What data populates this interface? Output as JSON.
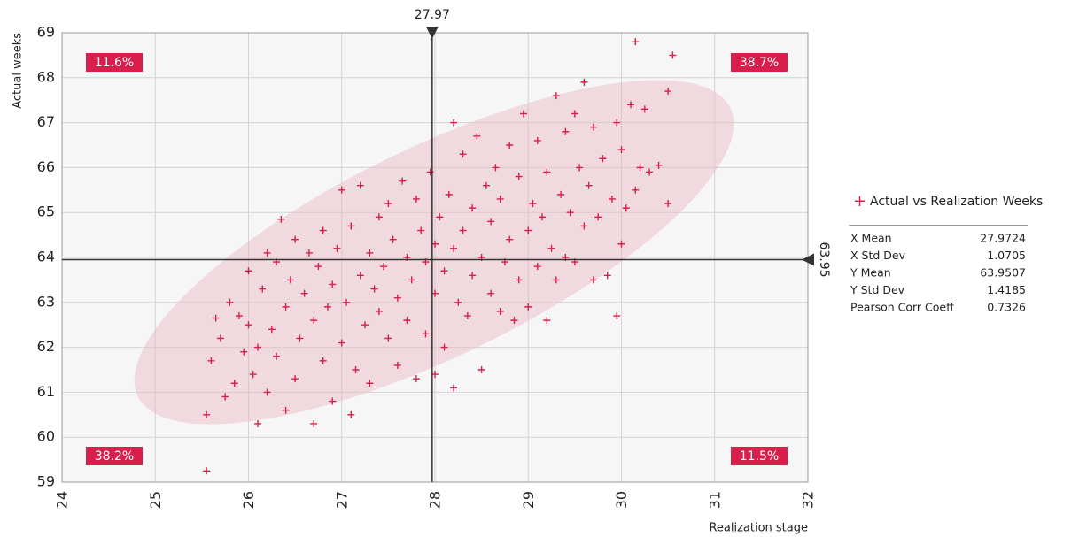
{
  "chart_data": {
    "type": "scatter",
    "x_label": "Realization stage",
    "y_label": "Actual weeks",
    "xlim": [
      24,
      32
    ],
    "ylim": [
      59,
      69
    ],
    "xticks": [
      24,
      25,
      26,
      27,
      28,
      29,
      30,
      31,
      32
    ],
    "yticks": [
      59,
      60,
      61,
      62,
      63,
      64,
      65,
      66,
      67,
      68,
      69
    ],
    "grid": true,
    "x_mean_marker": 27.97,
    "y_mean_marker": 63.95,
    "quadrant_labels": [
      "11.6%",
      "38.7%",
      "38.2%",
      "11.5%"
    ],
    "series": [
      {
        "name": "Actual vs Realization Weeks",
        "color": "#d81e4a",
        "x": [
          25.55,
          25.55,
          25.6,
          25.65,
          25.7,
          25.75,
          25.8,
          25.85,
          25.9,
          25.95,
          26.0,
          26.0,
          26.05,
          26.1,
          26.1,
          26.15,
          26.2,
          26.2,
          26.25,
          26.3,
          26.3,
          26.35,
          26.4,
          26.4,
          26.45,
          26.5,
          26.5,
          26.55,
          26.6,
          26.65,
          26.7,
          26.7,
          26.75,
          26.8,
          26.8,
          26.85,
          26.9,
          26.9,
          26.95,
          27.0,
          27.0,
          27.05,
          27.1,
          27.1,
          27.15,
          27.2,
          27.2,
          27.25,
          27.3,
          27.3,
          27.35,
          27.4,
          27.4,
          27.45,
          27.5,
          27.5,
          27.55,
          27.6,
          27.6,
          27.65,
          27.7,
          27.7,
          27.75,
          27.8,
          27.8,
          27.85,
          27.9,
          27.9,
          27.95,
          28.0,
          28.0,
          28.0,
          28.05,
          28.1,
          28.1,
          28.15,
          28.2,
          28.2,
          28.2,
          28.25,
          28.3,
          28.3,
          28.35,
          28.4,
          28.4,
          28.45,
          28.5,
          28.5,
          28.55,
          28.6,
          28.6,
          28.65,
          28.7,
          28.7,
          28.75,
          28.8,
          28.8,
          28.85,
          28.9,
          28.9,
          28.95,
          29.0,
          29.0,
          29.05,
          29.1,
          29.1,
          29.15,
          29.2,
          29.2,
          29.25,
          29.3,
          29.3,
          29.35,
          29.4,
          29.4,
          29.45,
          29.5,
          29.5,
          29.55,
          29.6,
          29.6,
          29.65,
          29.7,
          29.7,
          29.75,
          29.8,
          29.85,
          29.9,
          29.95,
          29.95,
          30.0,
          30.0,
          30.05,
          30.1,
          30.15,
          30.15,
          30.2,
          30.25,
          30.3,
          30.4,
          30.5,
          30.5,
          30.55
        ],
        "values": [
          59.25,
          60.5,
          61.7,
          62.65,
          62.2,
          60.9,
          63.0,
          61.2,
          62.7,
          61.9,
          63.7,
          62.5,
          61.4,
          60.3,
          62.0,
          63.3,
          64.1,
          61.0,
          62.4,
          63.9,
          61.8,
          64.85,
          62.9,
          60.6,
          63.5,
          64.4,
          61.3,
          62.2,
          63.2,
          64.1,
          60.3,
          62.6,
          63.8,
          64.6,
          61.7,
          62.9,
          63.4,
          60.8,
          64.2,
          65.5,
          62.1,
          63.0,
          60.5,
          64.7,
          61.5,
          63.6,
          65.6,
          62.5,
          64.1,
          61.2,
          63.3,
          64.9,
          62.8,
          63.8,
          65.2,
          62.2,
          64.4,
          63.1,
          61.6,
          65.7,
          64.0,
          62.6,
          63.5,
          65.3,
          61.3,
          64.6,
          63.9,
          62.3,
          65.9,
          64.3,
          61.4,
          63.2,
          64.9,
          63.7,
          62.0,
          65.4,
          61.1,
          64.2,
          67.0,
          63.0,
          66.3,
          64.6,
          62.7,
          65.1,
          63.6,
          66.7,
          61.5,
          64.0,
          65.6,
          63.2,
          64.8,
          66.0,
          62.8,
          65.3,
          63.9,
          66.5,
          64.4,
          62.6,
          65.8,
          63.5,
          67.2,
          64.6,
          62.9,
          65.2,
          66.6,
          63.8,
          64.9,
          62.6,
          65.9,
          64.2,
          67.6,
          63.5,
          65.4,
          66.8,
          64.0,
          65.0,
          67.2,
          63.9,
          66.0,
          64.7,
          67.9,
          65.6,
          63.5,
          66.9,
          64.9,
          66.2,
          63.6,
          65.3,
          62.7,
          67.0,
          64.3,
          66.4,
          65.1,
          67.4,
          68.8,
          65.5,
          66.0,
          67.3,
          65.9,
          66.05,
          65.2,
          67.7,
          68.5
        ]
      }
    ],
    "stats": [
      {
        "label": "X Mean",
        "value": "27.9724"
      },
      {
        "label": "X Std Dev",
        "value": "1.0705"
      },
      {
        "label": "Y Mean",
        "value": "63.9507"
      },
      {
        "label": "Y Std Dev",
        "value": "1.4185"
      },
      {
        "label": "Pearson Corr Coeff",
        "value": "0.7326"
      }
    ]
  }
}
